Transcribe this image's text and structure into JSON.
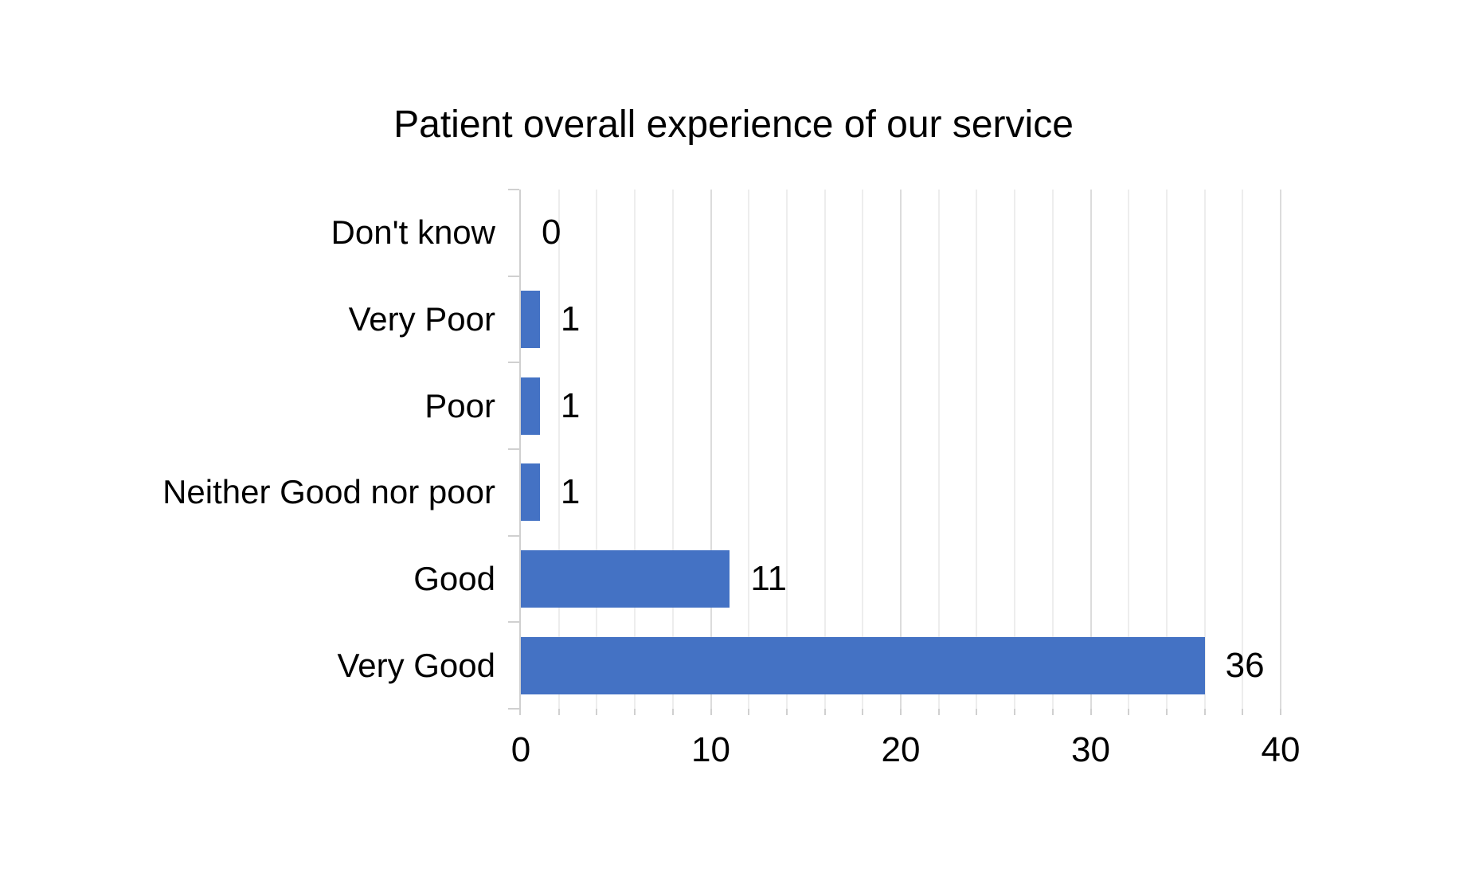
{
  "title": "Patient overall experience of our service",
  "colors": {
    "background": "#FFFFFF",
    "bar": "#4472C4",
    "axis_line": "#D0D0D0",
    "tick": "#D0D0D0",
    "gridline_major": "#DCDCDC",
    "gridline_minor": "#EDEDED",
    "text": "#000000"
  },
  "chart_data": {
    "type": "bar",
    "orientation": "horizontal",
    "title": "Patient overall experience of our service",
    "categories": [
      "Don't know",
      "Very Poor",
      "Poor",
      "Neither Good nor poor",
      "Good",
      "Very Good"
    ],
    "values": [
      0,
      1,
      1,
      1,
      11,
      36
    ],
    "data_labels": [
      "0",
      "1",
      "1",
      "1",
      "11",
      "36"
    ],
    "xlabel": "",
    "ylabel": "",
    "xlim": [
      0,
      40
    ],
    "x_major_ticks": [
      0,
      10,
      20,
      30,
      40
    ],
    "x_major_tick_labels": [
      "0",
      "10",
      "20",
      "30",
      "40"
    ],
    "x_minor_step": 2,
    "grid": {
      "vertical_minor": true,
      "vertical_major": true,
      "horizontal": false
    },
    "legend_position": "none",
    "bar_color": "#4472C4"
  }
}
